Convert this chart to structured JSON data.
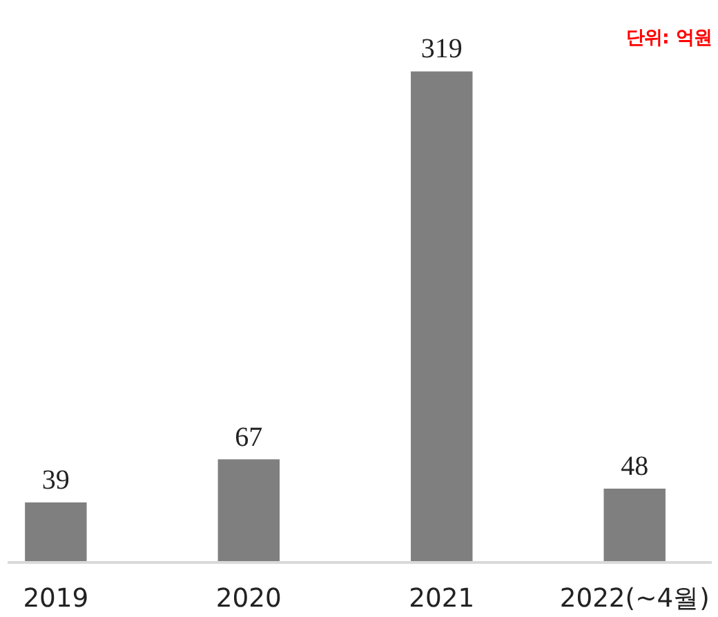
{
  "chart_data": {
    "type": "bar",
    "categories": [
      "2019",
      "2020",
      "2021",
      "2022(~4월)"
    ],
    "values": [
      39,
      67,
      319,
      48
    ],
    "color": "#7f7f7f",
    "data_labels": true,
    "annotations": [
      "단위: 억원"
    ]
  }
}
